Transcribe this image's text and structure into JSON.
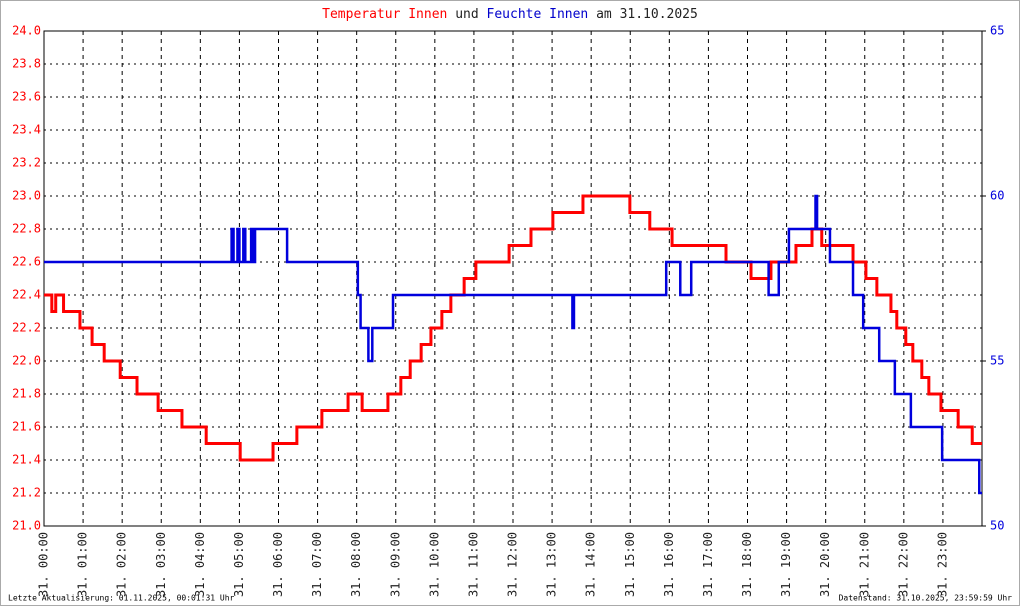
{
  "chart_data": {
    "type": "line",
    "step": true,
    "title_parts": [
      {
        "text": "Temperatur Innen",
        "color": "#ff0000"
      },
      {
        "text": "und",
        "color": "#222222"
      },
      {
        "text": "Feuchte Innen",
        "color": "#0000cc"
      },
      {
        "text": "am 31.10.2025",
        "color": "#222222"
      }
    ],
    "footer_left": "Letzte Aktualisierung: 01.11.2025, 00:01:31 Uhr",
    "footer_right": "Datenstand: 31.10.2025, 23:59:59 Uhr",
    "xlim": [
      0,
      24
    ],
    "xticks": [
      {
        "value": 0,
        "label": "31. 00:00"
      },
      {
        "value": 1,
        "label": "31. 01:00"
      },
      {
        "value": 2,
        "label": "31. 02:00"
      },
      {
        "value": 3,
        "label": "31. 03:00"
      },
      {
        "value": 4,
        "label": "31. 04:00"
      },
      {
        "value": 5,
        "label": "31. 05:00"
      },
      {
        "value": 6,
        "label": "31. 06:00"
      },
      {
        "value": 7,
        "label": "31. 07:00"
      },
      {
        "value": 8,
        "label": "31. 08:00"
      },
      {
        "value": 9,
        "label": "31. 09:00"
      },
      {
        "value": 10,
        "label": "31. 10:00"
      },
      {
        "value": 11,
        "label": "31. 11:00"
      },
      {
        "value": 12,
        "label": "31. 12:00"
      },
      {
        "value": 13,
        "label": "31. 13:00"
      },
      {
        "value": 14,
        "label": "31. 14:00"
      },
      {
        "value": 15,
        "label": "31. 15:00"
      },
      {
        "value": 16,
        "label": "31. 16:00"
      },
      {
        "value": 17,
        "label": "31. 17:00"
      },
      {
        "value": 18,
        "label": "31. 18:00"
      },
      {
        "value": 19,
        "label": "31. 19:00"
      },
      {
        "value": 20,
        "label": "31. 20:00"
      },
      {
        "value": 21,
        "label": "31. 21:00"
      },
      {
        "value": 22,
        "label": "31. 22:00"
      },
      {
        "value": 23,
        "label": "31. 23:00"
      }
    ],
    "ylim": [
      21,
      24
    ],
    "yticks": [
      {
        "value": 21,
        "label": "21.0"
      },
      21.2,
      21.4,
      21.6,
      21.8,
      {
        "value": 22,
        "label": "22.0"
      },
      22.2,
      22.4,
      22.6,
      22.8,
      {
        "value": 23,
        "label": "23.0"
      },
      23.2,
      23.4,
      23.6,
      23.8,
      {
        "value": 24,
        "label": "24.0"
      }
    ],
    "y2lim": [
      50,
      65
    ],
    "y2ticks": [
      50,
      55,
      60,
      65
    ],
    "grid": true,
    "series": [
      {
        "color": "#ff0000",
        "axis": "y",
        "x": [
          0,
          0.2,
          0.3,
          0.5,
          0.92,
          1.23,
          1.54,
          1.95,
          2.38,
          2.92,
          3.53,
          4.15,
          5.02,
          5.86,
          6.47,
          7.11,
          7.78,
          8.14,
          8.8,
          9.13,
          9.37,
          9.65,
          9.9,
          10.18,
          10.41,
          10.75,
          11.05,
          11.9,
          12.46,
          13.02,
          13.79,
          14.99,
          15.5,
          16.07,
          17.45,
          18.09,
          18.6,
          19.24,
          19.65,
          19.9,
          20.7,
          21.03,
          21.31,
          21.67,
          21.82,
          22.05,
          22.23,
          22.46,
          22.64,
          22.95,
          23.39,
          23.75,
          24
        ],
        "values": [
          22.4,
          22.3,
          22.4,
          22.3,
          22.2,
          22.1,
          22.0,
          21.9,
          21.8,
          21.7,
          21.6,
          21.5,
          21.4,
          21.5,
          21.6,
          21.7,
          21.8,
          21.7,
          21.8,
          21.9,
          22.0,
          22.1,
          22.2,
          22.3,
          22.4,
          22.5,
          22.6,
          22.7,
          22.8,
          22.9,
          23.0,
          22.9,
          22.8,
          22.7,
          22.6,
          22.5,
          22.6,
          22.7,
          22.8,
          22.7,
          22.6,
          22.5,
          22.4,
          22.3,
          22.2,
          22.1,
          22.0,
          21.9,
          21.8,
          21.7,
          21.6,
          21.5,
          21.5
        ]
      },
      {
        "color": "#0000dd",
        "axis": "y2",
        "x": [
          0,
          4.8,
          4.85,
          4.95,
          5.0,
          5.1,
          5.15,
          5.3,
          5.35,
          5.4,
          6.22,
          8.03,
          8.1,
          8.3,
          8.4,
          8.93,
          13.52,
          13.56,
          15.92,
          16.28,
          16.56,
          18.54,
          18.8,
          19.06,
          19.74,
          19.78,
          20.11,
          20.7,
          20.96,
          21.37,
          21.77,
          22.18,
          22.98,
          23.93,
          24
        ],
        "values": [
          58,
          59,
          58,
          59,
          58,
          59,
          58,
          59,
          58,
          59,
          58,
          57,
          56,
          55,
          56,
          57,
          56,
          57,
          58,
          57,
          58,
          57,
          58,
          59,
          60,
          59,
          58,
          57,
          56,
          55,
          54,
          53,
          52,
          51,
          51
        ]
      }
    ]
  }
}
